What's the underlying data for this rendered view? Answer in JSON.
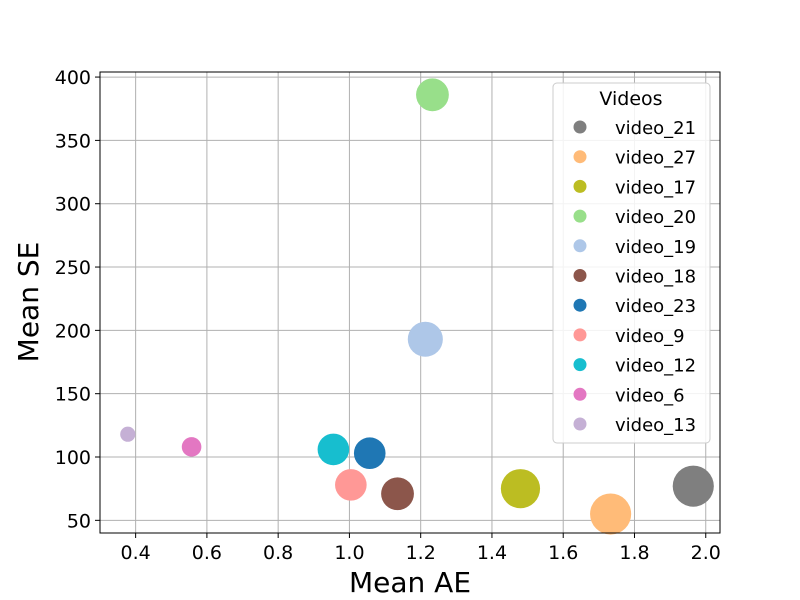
{
  "chart_data": {
    "type": "scatter",
    "xlabel": "Mean AE",
    "ylabel": "Mean SE",
    "xlim": [
      0.3,
      2.04
    ],
    "ylim": [
      40,
      404
    ],
    "xticks": [
      "0.4",
      "0.6",
      "0.8",
      "1.0",
      "1.2",
      "1.4",
      "1.6",
      "1.8",
      "2.0"
    ],
    "yticks": [
      "50",
      "100",
      "150",
      "200",
      "250",
      "300",
      "350",
      "400"
    ],
    "grid": true,
    "legend": {
      "title": "Videos",
      "placement": "top-right"
    },
    "series": [
      {
        "name": "video_21",
        "x": 1.965,
        "y": 77,
        "size": 11,
        "color": "#7f7f7f"
      },
      {
        "name": "video_27",
        "x": 1.733,
        "y": 55,
        "size": 11,
        "color": "#ffbb78"
      },
      {
        "name": "video_17",
        "x": 1.48,
        "y": 75,
        "size": 10,
        "color": "#bcbd22"
      },
      {
        "name": "video_20",
        "x": 1.233,
        "y": 386,
        "size": 7,
        "color": "#98df8a"
      },
      {
        "name": "video_19",
        "x": 1.213,
        "y": 193,
        "size": 8,
        "color": "#aec7e8"
      },
      {
        "name": "video_18",
        "x": 1.135,
        "y": 71,
        "size": 7,
        "color": "#8c564b"
      },
      {
        "name": "video_23",
        "x": 1.057,
        "y": 103,
        "size": 6.5,
        "color": "#1f77b4"
      },
      {
        "name": "video_9",
        "x": 1.004,
        "y": 78,
        "size": 6.5,
        "color": "#ff9896"
      },
      {
        "name": "video_12",
        "x": 0.955,
        "y": 106,
        "size": 6.5,
        "color": "#17becf"
      },
      {
        "name": "video_6",
        "x": 0.557,
        "y": 108,
        "size": 2.5,
        "color": "#e377c2"
      },
      {
        "name": "video_13",
        "x": 0.378,
        "y": 118,
        "size": 1.5,
        "color": "#c5b0d5"
      }
    ]
  }
}
